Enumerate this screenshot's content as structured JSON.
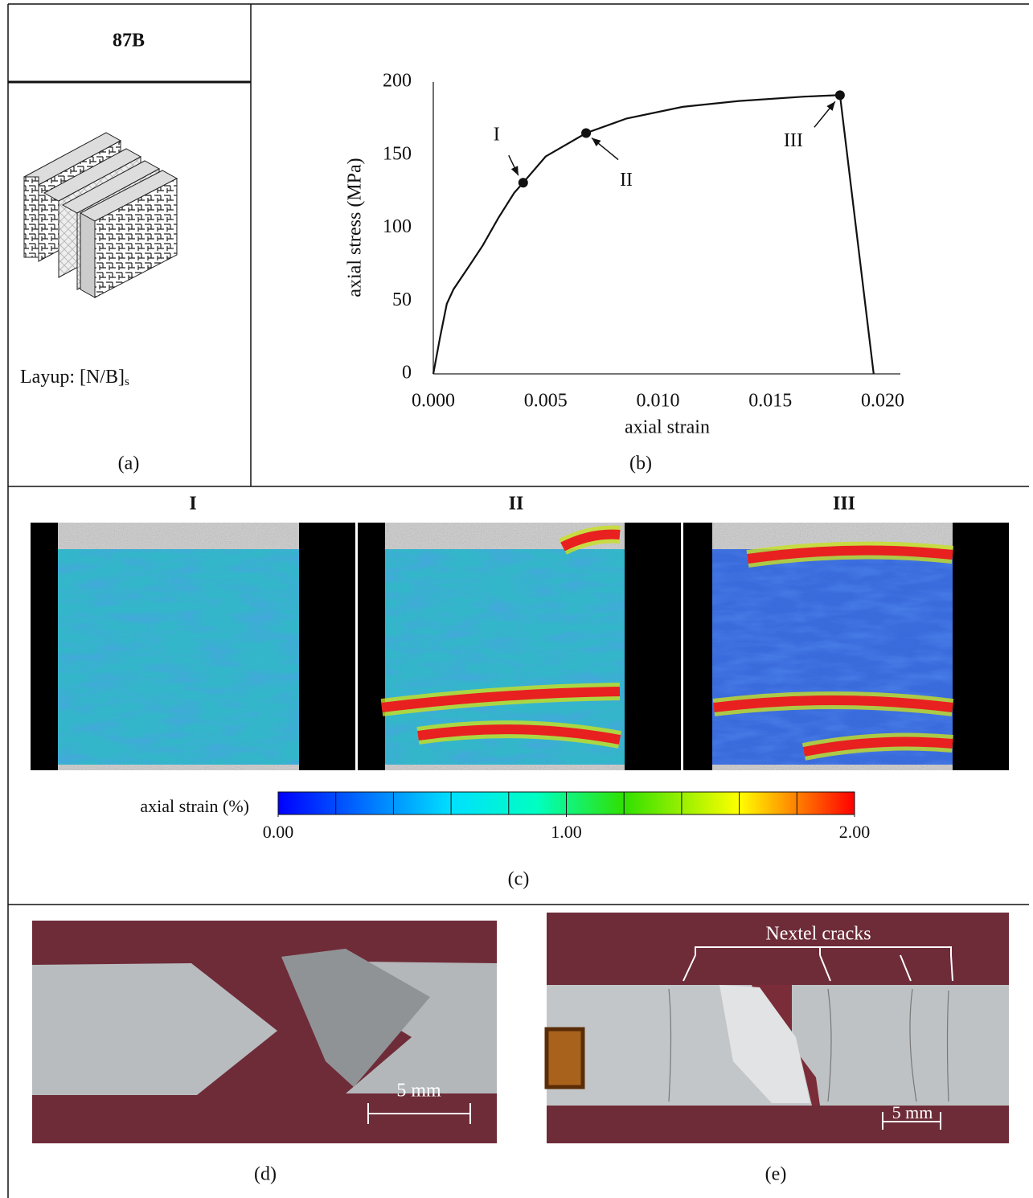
{
  "specimen": "87B",
  "layup": {
    "text": "Layup: [N/B]",
    "subscript": "s"
  },
  "captions": {
    "a": "(a)",
    "b": "(b)",
    "c": "(c)",
    "d": "(d)",
    "e": "(e)"
  },
  "chart_data": {
    "type": "line",
    "xlabel": "axial strain",
    "ylabel": "axial stress (MPa)",
    "x": [
      0,
      0.0003,
      0.0006,
      0.0009,
      0.0016,
      0.0022,
      0.0029,
      0.0036,
      0.004,
      0.005,
      0.0068,
      0.0086,
      0.0111,
      0.0136,
      0.0165,
      0.0181,
      0.0196
    ],
    "values": [
      0,
      25,
      48,
      58,
      74,
      88,
      107,
      124,
      131,
      149,
      165,
      175,
      183,
      187,
      190,
      191,
      0
    ],
    "color": "#111111",
    "xlim": [
      0,
      0.02
    ],
    "ylim": [
      0,
      200
    ],
    "xticks": [
      {
        "value": 0,
        "label": "0.000"
      },
      {
        "value": 0.005,
        "label": "0.005"
      },
      {
        "value": 0.01,
        "label": "0.010"
      },
      {
        "value": 0.015,
        "label": "0.015"
      },
      {
        "value": 0.02,
        "label": "0.020"
      }
    ],
    "yticks": [
      0,
      50,
      100,
      150,
      200
    ],
    "grid": false,
    "annotations": [
      {
        "text": "I",
        "x": 0.004,
        "y": 131
      },
      {
        "text": "II",
        "x": 0.0068,
        "y": 165
      },
      {
        "text": "III",
        "x": 0.0181,
        "y": 191
      }
    ]
  },
  "dic": {
    "panels": [
      "I",
      "II",
      "III"
    ],
    "colorbar": {
      "title": "axial strain (%)",
      "lim": [
        0,
        2
      ],
      "ticks": [
        {
          "value": 0,
          "label": "0.00"
        },
        {
          "value": 1,
          "label": "1.00"
        },
        {
          "value": 2,
          "label": "2.00"
        }
      ]
    }
  },
  "photos": {
    "d_scale": "5 mm",
    "e_scale": "5 mm",
    "e_annotation": "Nextel cracks"
  }
}
